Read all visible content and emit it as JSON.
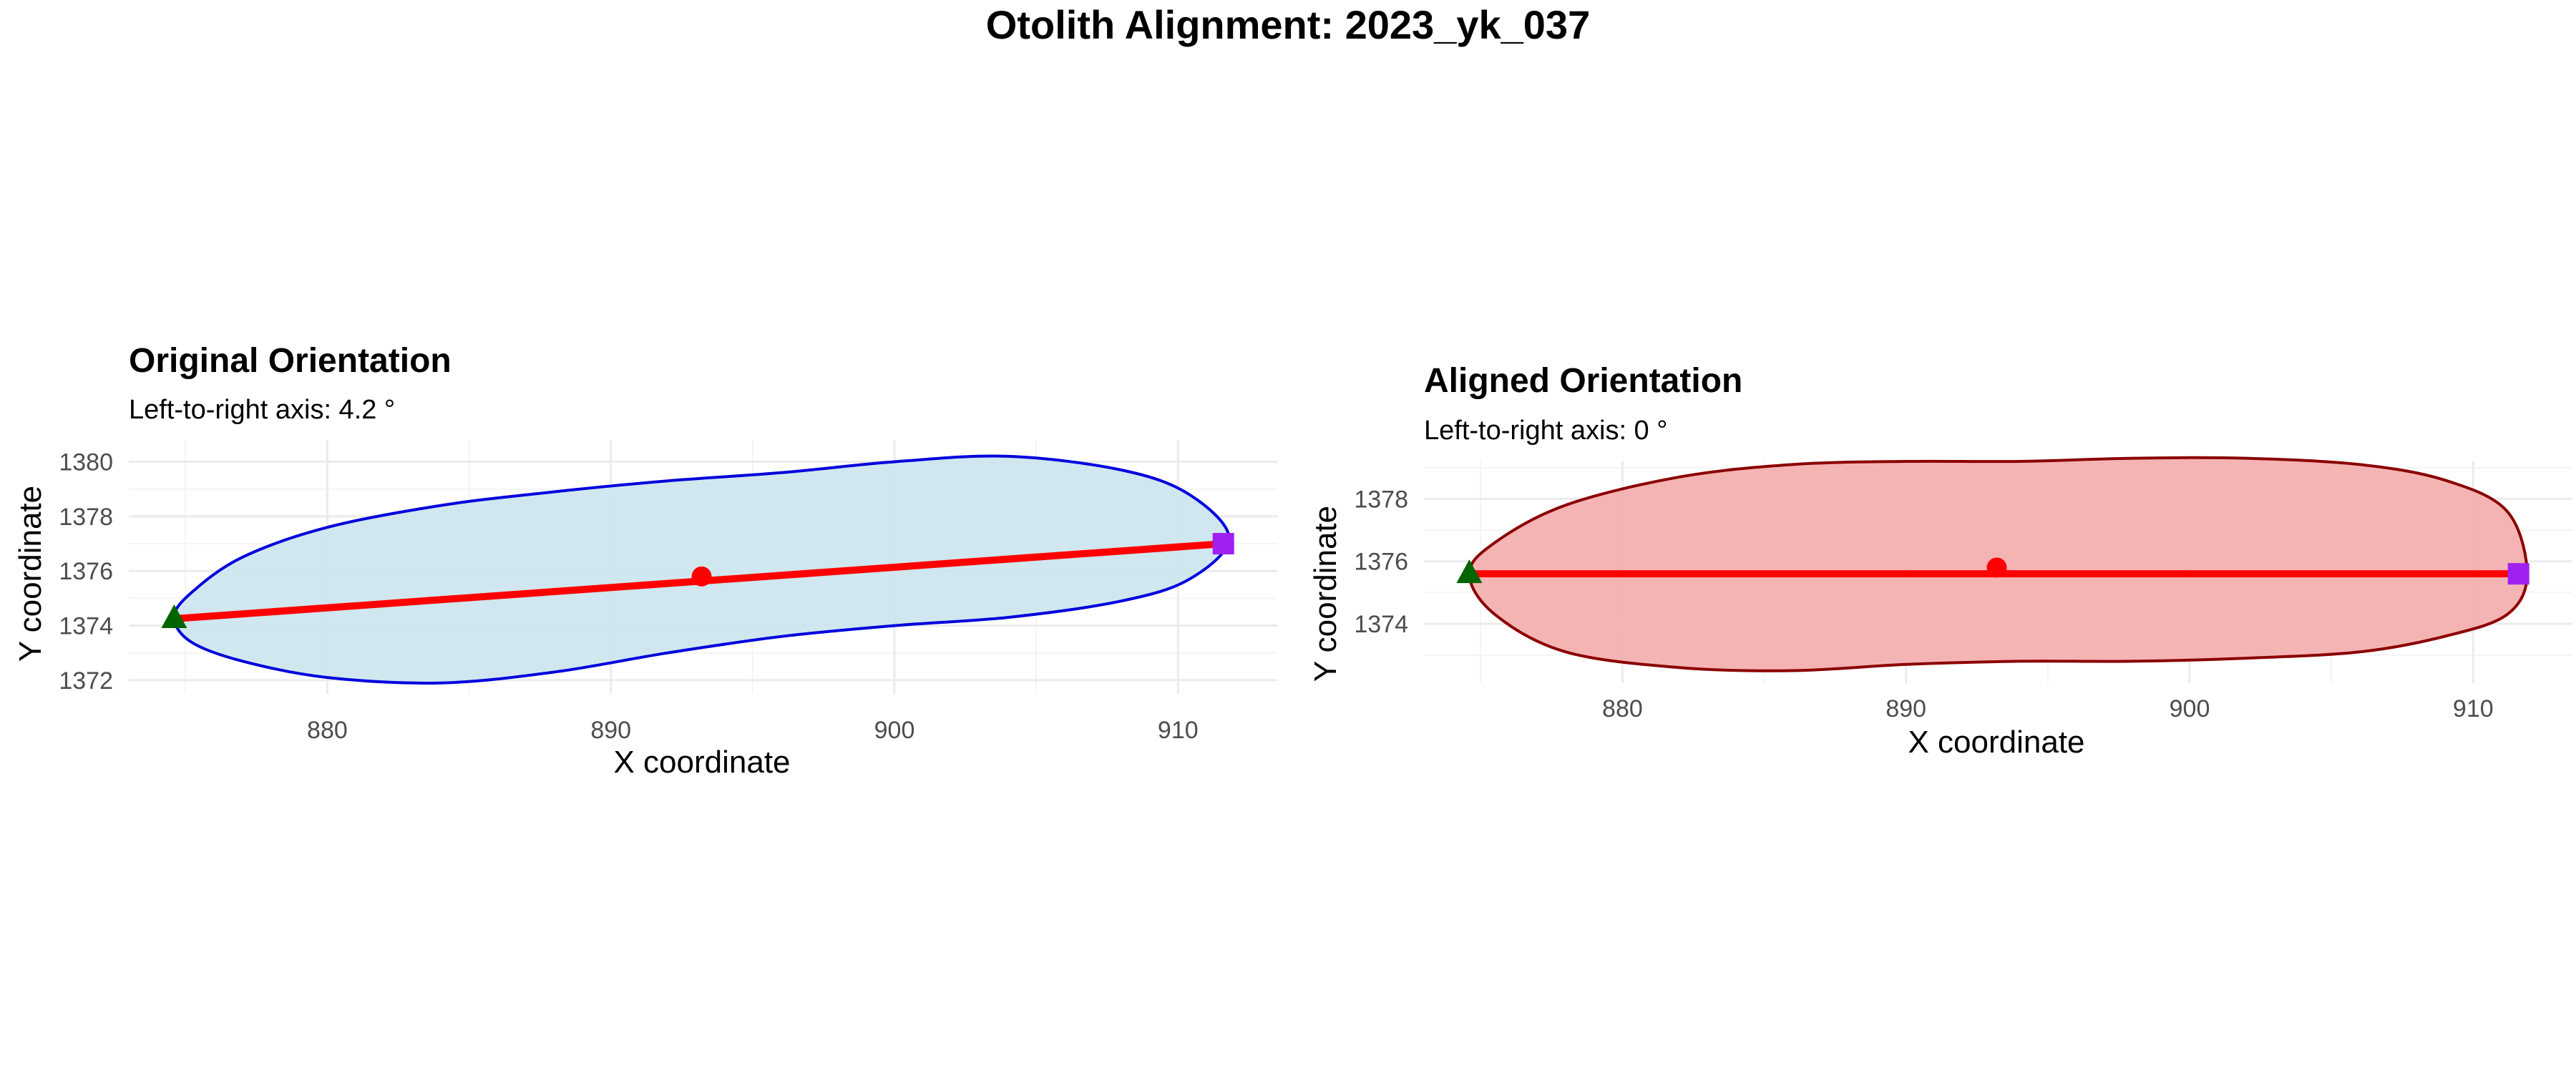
{
  "title": "Otolith Alignment: 2023_yk_037",
  "chart_data": [
    {
      "type": "scatter",
      "title": "Original Orientation",
      "subtitle": "Left-to-right axis: 4.2 °",
      "xlabel": "X coordinate",
      "ylabel": "Y coordinate",
      "xlim": [
        873.0,
        913.5
      ],
      "ylim": [
        1371.5,
        1380.8
      ],
      "xticks": [
        880,
        890,
        900,
        910
      ],
      "yticks": [
        1372,
        1374,
        1376,
        1378,
        1380
      ],
      "grid": true,
      "outline": {
        "fill": "#cde6ee",
        "stroke": "#0000dd",
        "x": [
          874.6,
          875.2,
          877,
          880,
          884,
          888,
          892,
          896,
          900,
          904,
          908,
          910.4,
          911.8,
          910.4,
          908,
          904,
          900,
          896,
          892,
          888,
          884,
          880,
          877,
          875.2
        ],
        "y": [
          1374.3,
          1375.2,
          1376.5,
          1377.6,
          1378.4,
          1378.9,
          1379.3,
          1379.6,
          1380.0,
          1380.2,
          1379.7,
          1378.8,
          1377.2,
          1375.7,
          1374.9,
          1374.3,
          1374.0,
          1373.6,
          1373.0,
          1372.3,
          1371.9,
          1372.1,
          1372.7,
          1373.4
        ]
      },
      "axis_line": {
        "x": [
          874.6,
          911.6
        ],
        "y": [
          1374.25,
          1377.0
        ],
        "color": "#ff0000"
      },
      "centroid": {
        "x": 893.2,
        "y": 1375.8,
        "color": "#ff0000"
      },
      "start_point": {
        "x": 874.6,
        "y": 1374.25,
        "color": "#006400"
      },
      "end_point": {
        "x": 911.6,
        "y": 1377.0,
        "color": "#a020f0"
      }
    },
    {
      "type": "scatter",
      "title": "Aligned Orientation",
      "subtitle": "Left-to-right axis: 0 °",
      "xlabel": "X coordinate",
      "ylabel": "Y coordinate",
      "xlim": [
        873.0,
        913.5
      ],
      "ylim": [
        1372.1,
        1379.2
      ],
      "xticks": [
        880,
        890,
        900,
        910
      ],
      "yticks": [
        1374,
        1376,
        1378
      ],
      "grid": true,
      "outline": {
        "fill": "#f4b0b0",
        "stroke": "#8b0000",
        "x": [
          874.6,
          875.5,
          878,
          882,
          886,
          890,
          894,
          898,
          902,
          906,
          909,
          911.2,
          911.9,
          911.2,
          909,
          906,
          902,
          898,
          894,
          890,
          886,
          882,
          878,
          875.5
        ],
        "y": [
          1375.6,
          1376.6,
          1377.8,
          1378.7,
          1379.1,
          1379.2,
          1379.2,
          1379.3,
          1379.3,
          1379.1,
          1378.6,
          1377.6,
          1375.6,
          1374.3,
          1373.6,
          1373.1,
          1372.9,
          1372.8,
          1372.8,
          1372.7,
          1372.5,
          1372.6,
          1373.1,
          1374.3
        ]
      },
      "axis_line": {
        "x": [
          874.6,
          911.6
        ],
        "y": [
          1375.6,
          1375.6
        ],
        "color": "#ff0000"
      },
      "centroid": {
        "x": 893.2,
        "y": 1375.8,
        "color": "#ff0000"
      },
      "start_point": {
        "x": 874.6,
        "y": 1375.6,
        "color": "#006400"
      },
      "end_point": {
        "x": 911.6,
        "y": 1375.6,
        "color": "#a020f0"
      }
    }
  ]
}
